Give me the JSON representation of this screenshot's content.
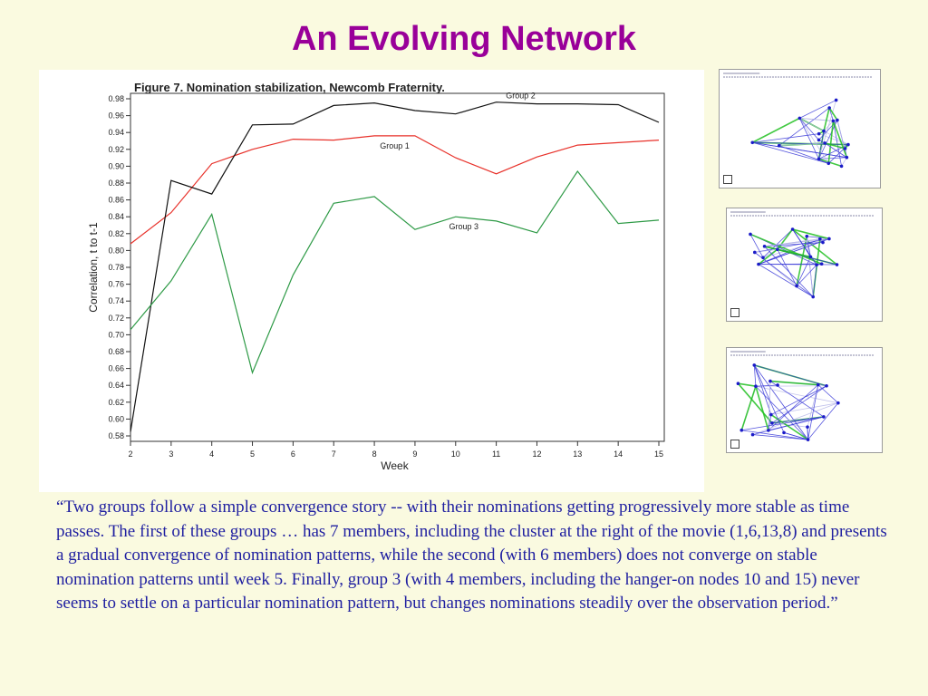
{
  "slide": {
    "title": "An Evolving Network",
    "quote": "“Two groups follow a simple convergence story -- with their nominations getting progressively more stable as time passes.  The first of these groups … has 7 members, including the cluster at the right of the movie (1,6,13,8) and presents a gradual convergence of nomination patterns, while the second (with 6 members) does not converge on stable nomination patterns until week 5.  Finally, group 3 (with 4 members, including the hanger-on nodes 10 and 15) never seems to settle on a particular nomination pattern, but changes nominations steadily over the observation period.”"
  },
  "chart_data": {
    "type": "line",
    "title": "Figure 7.  Nomination stabilization, Newcomb Fraternity.",
    "xlabel": "Week",
    "ylabel": "Correlation, t to t-1",
    "x": [
      2,
      3,
      4,
      5,
      6,
      7,
      8,
      9,
      10,
      11,
      12,
      13,
      14,
      15
    ],
    "xlim": [
      2,
      15
    ],
    "ylim": [
      0.58,
      0.98
    ],
    "yticks": [
      "0.58",
      "0.60",
      "0.62",
      "0.64",
      "0.66",
      "0.68",
      "0.70",
      "0.72",
      "0.74",
      "0.76",
      "0.78",
      "0.80",
      "0.82",
      "0.84",
      "0.86",
      "0.88",
      "0.90",
      "0.92",
      "0.94",
      "0.96",
      "0.98"
    ],
    "grid": false,
    "series": [
      {
        "name": "Group 1",
        "color": "#e8312a",
        "values": [
          0.808,
          0.845,
          0.903,
          0.92,
          0.932,
          0.931,
          0.936,
          0.936,
          0.91,
          0.891,
          0.911,
          0.925,
          0.928,
          0.931
        ]
      },
      {
        "name": "Group 2",
        "color": "#111111",
        "values": [
          0.585,
          0.883,
          0.867,
          0.949,
          0.95,
          0.972,
          0.975,
          0.966,
          0.962,
          0.976,
          0.974,
          0.974,
          0.973,
          0.952
        ]
      },
      {
        "name": "Group 3",
        "color": "#2e9a46",
        "values": [
          0.706,
          0.764,
          0.843,
          0.655,
          0.771,
          0.856,
          0.864,
          0.825,
          0.84,
          0.835,
          0.821,
          0.894,
          0.832,
          0.836
        ]
      }
    ]
  },
  "thumbnails": {
    "colors": {
      "node": "#1a1ac8",
      "edge_blue": "#3a3ad8",
      "edge_green": "#22c022",
      "edge_light": "#b8b8e8"
    },
    "header_text_color": "#8a8aa8"
  }
}
